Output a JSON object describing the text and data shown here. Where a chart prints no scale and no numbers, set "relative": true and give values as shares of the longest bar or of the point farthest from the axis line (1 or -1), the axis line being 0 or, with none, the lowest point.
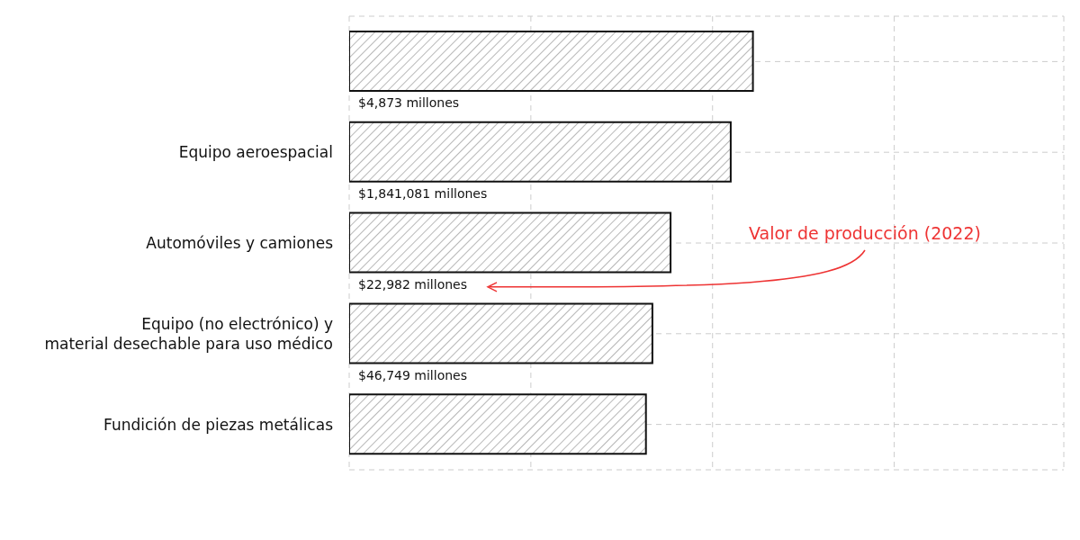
{
  "chart_data": {
    "type": "bar",
    "orientation": "horizontal",
    "relative": true,
    "categories": [
      null,
      "Equipo aeroespacial",
      "Automóviles y camiones",
      "Equipo (no electrónico) y\nmaterial desechable para uso médico",
      "Fundición de piezas metálicas"
    ],
    "values": [
      1,
      0.945,
      0.796,
      0.751,
      0.735
    ],
    "color": "#111111",
    "grid": true,
    "annotations": [
      "$4,873 millones",
      "$1,841,081 millones",
      "$22,982 millones",
      "$46,749 millones",
      "Valor de producción (2022)"
    ]
  }
}
